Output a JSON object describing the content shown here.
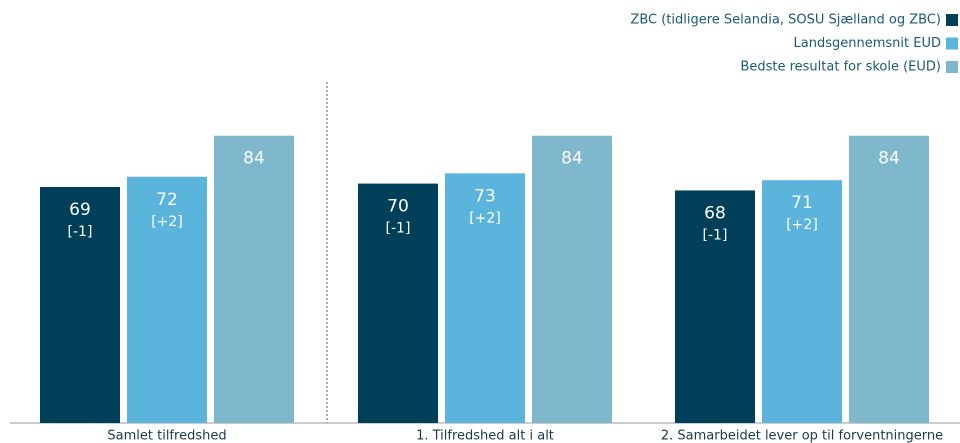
{
  "chart_data": {
    "type": "bar",
    "categories": [
      "Samlet tilfredshed",
      "1. Tilfredshed alt i alt",
      "2. Samarbeidet lever op til forventningerne"
    ],
    "series": [
      {
        "name": "ZBC (tidligere Selandia, SOSU Sjælland og ZBC)",
        "color": "#003f5a",
        "values": [
          69,
          70,
          68
        ],
        "changes": [
          "[-1]",
          "[-1]",
          "[-1]"
        ]
      },
      {
        "name": "Landsgennemsnit EUD",
        "color": "#5ab4dc",
        "values": [
          72,
          73,
          71
        ],
        "changes": [
          "[+2]",
          "[+2]",
          "[+2]"
        ]
      },
      {
        "name": "Bedste resultat for skole (EUD)",
        "color": "#7fb8cc",
        "values": [
          84,
          84,
          84
        ]
      }
    ],
    "ylim": [
      0,
      100
    ],
    "legend": "top-right"
  }
}
